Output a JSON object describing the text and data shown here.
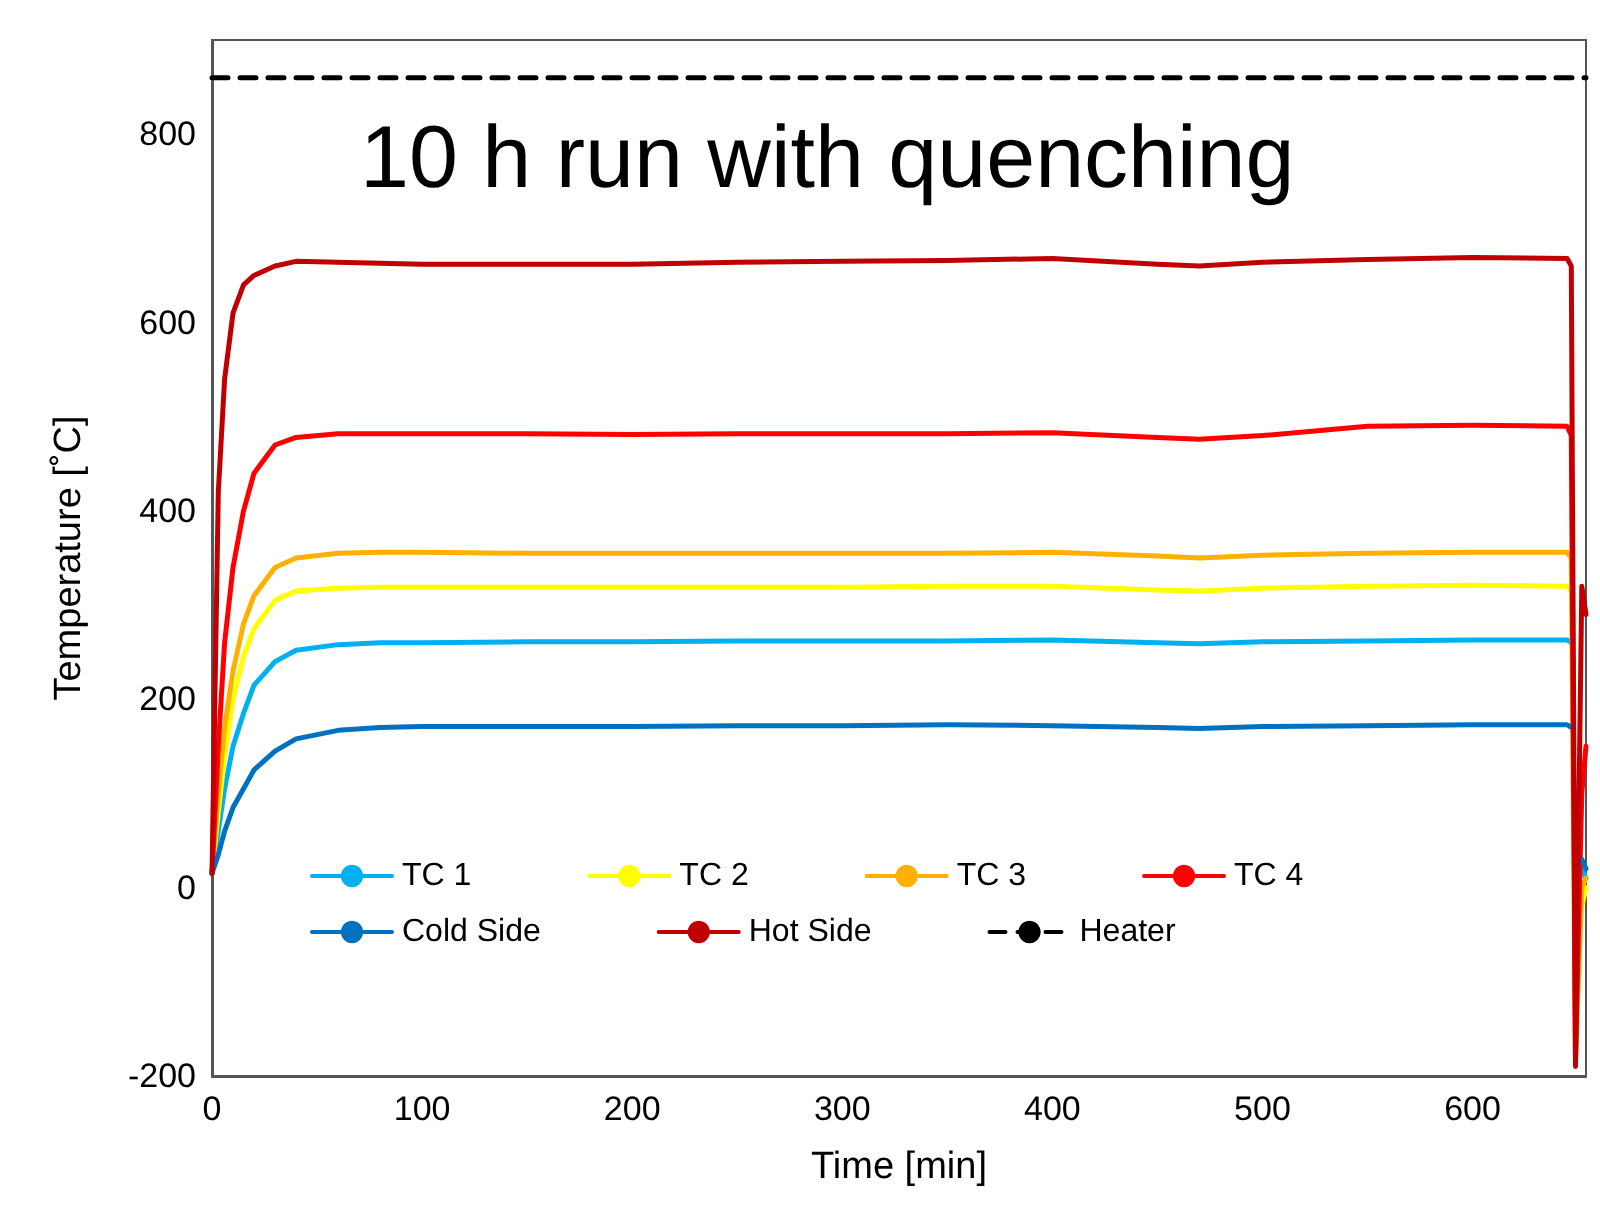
{
  "chart_data": {
    "type": "line",
    "title": "10 h run with quenching",
    "xlabel": "Time [min]",
    "ylabel": "Temperature [˚C]",
    "x": [
      0,
      3,
      6,
      10,
      15,
      20,
      30,
      40,
      60,
      80,
      100,
      150,
      200,
      250,
      300,
      350,
      400,
      450,
      470,
      500,
      550,
      600,
      645,
      647,
      649,
      652,
      654
    ],
    "series": [
      {
        "name": "TC 1",
        "color": "#00b0f0",
        "values": [
          15,
          60,
          105,
          150,
          185,
          215,
          240,
          252,
          258,
          260,
          260,
          261,
          261,
          262,
          262,
          262,
          263,
          260,
          259,
          261,
          262,
          263,
          263,
          260,
          null,
          20,
          10
        ]
      },
      {
        "name": "TC 2",
        "color": "#ffff00",
        "values": [
          15,
          80,
          140,
          200,
          245,
          275,
          305,
          315,
          318,
          319,
          319,
          319,
          319,
          319,
          319,
          320,
          320,
          316,
          315,
          318,
          320,
          321,
          320,
          315,
          null,
          -20,
          0
        ]
      },
      {
        "name": "TC 3",
        "color": "#ffb000",
        "values": [
          15,
          100,
          170,
          230,
          280,
          310,
          340,
          350,
          355,
          356,
          356,
          355,
          355,
          355,
          355,
          355,
          356,
          352,
          350,
          353,
          355,
          356,
          356,
          350,
          -185,
          0,
          10
        ]
      },
      {
        "name": "TC 4",
        "color": "#ff0000",
        "values": [
          15,
          150,
          260,
          340,
          400,
          440,
          470,
          478,
          482,
          482,
          482,
          482,
          481,
          482,
          482,
          482,
          483,
          478,
          476,
          480,
          490,
          491,
          490,
          480,
          -180,
          100,
          150
        ]
      },
      {
        "name": "Cold Side",
        "color": "#0070c0",
        "values": [
          15,
          35,
          60,
          85,
          105,
          125,
          145,
          158,
          167,
          170,
          171,
          171,
          171,
          172,
          172,
          173,
          172,
          170,
          169,
          171,
          172,
          173,
          173,
          170,
          null,
          30,
          20
        ]
      },
      {
        "name": "Hot Side",
        "color": "#c00000",
        "values": [
          15,
          420,
          540,
          610,
          640,
          650,
          660,
          665,
          664,
          663,
          662,
          662,
          662,
          664,
          665,
          666,
          668,
          662,
          660,
          664,
          667,
          669,
          668,
          660,
          -190,
          320,
          290
        ]
      },
      {
        "name": "Heater",
        "color": "#000000",
        "line_style": "dashed",
        "x": [
          0,
          654
        ],
        "values": [
          860,
          860
        ]
      }
    ],
    "xlim": [
      0,
      654
    ],
    "xticks": [
      0,
      100,
      200,
      300,
      400,
      500,
      600
    ],
    "ylim": [
      -200,
      900
    ],
    "yticks": [
      -200,
      0,
      200,
      400,
      600,
      800
    ],
    "grid": false,
    "legend": "bottom",
    "marker": "none",
    "line_style": "solid"
  }
}
